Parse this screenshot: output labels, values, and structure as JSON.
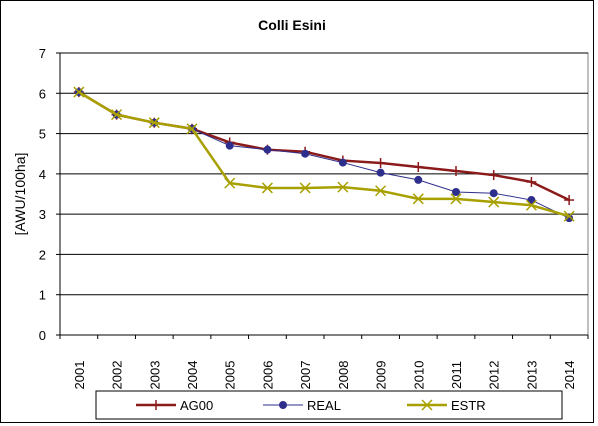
{
  "chart_data": {
    "type": "line",
    "title": "Colli Esini",
    "xlabel": "",
    "ylabel": "[AWU/100ha]",
    "ylim": [
      0,
      7
    ],
    "yticks": [
      0,
      1,
      2,
      3,
      4,
      5,
      6,
      7
    ],
    "grid": true,
    "legend_position": "bottom",
    "categories": [
      "2001",
      "2002",
      "2003",
      "2004",
      "2005",
      "2006",
      "2007",
      "2008",
      "2009",
      "2010",
      "2011",
      "2012",
      "2013",
      "2014"
    ],
    "series": [
      {
        "name": "AG00",
        "color": "#8B1A1A",
        "marker": "plus",
        "values": [
          6.03,
          5.47,
          5.27,
          5.12,
          4.78,
          4.6,
          4.55,
          4.33,
          4.27,
          4.17,
          4.07,
          3.97,
          3.8,
          3.35
        ]
      },
      {
        "name": "REAL",
        "color": "#2E2E8C",
        "marker": "circle",
        "values": [
          6.03,
          5.47,
          5.27,
          5.12,
          4.7,
          4.6,
          4.5,
          4.28,
          4.03,
          3.85,
          3.55,
          3.52,
          3.35,
          2.9
        ]
      },
      {
        "name": "ESTR",
        "color": "#A8A000",
        "marker": "x",
        "values": [
          6.03,
          5.47,
          5.27,
          5.12,
          3.77,
          3.65,
          3.65,
          3.67,
          3.58,
          3.38,
          3.38,
          3.3,
          3.22,
          2.95
        ]
      }
    ]
  }
}
